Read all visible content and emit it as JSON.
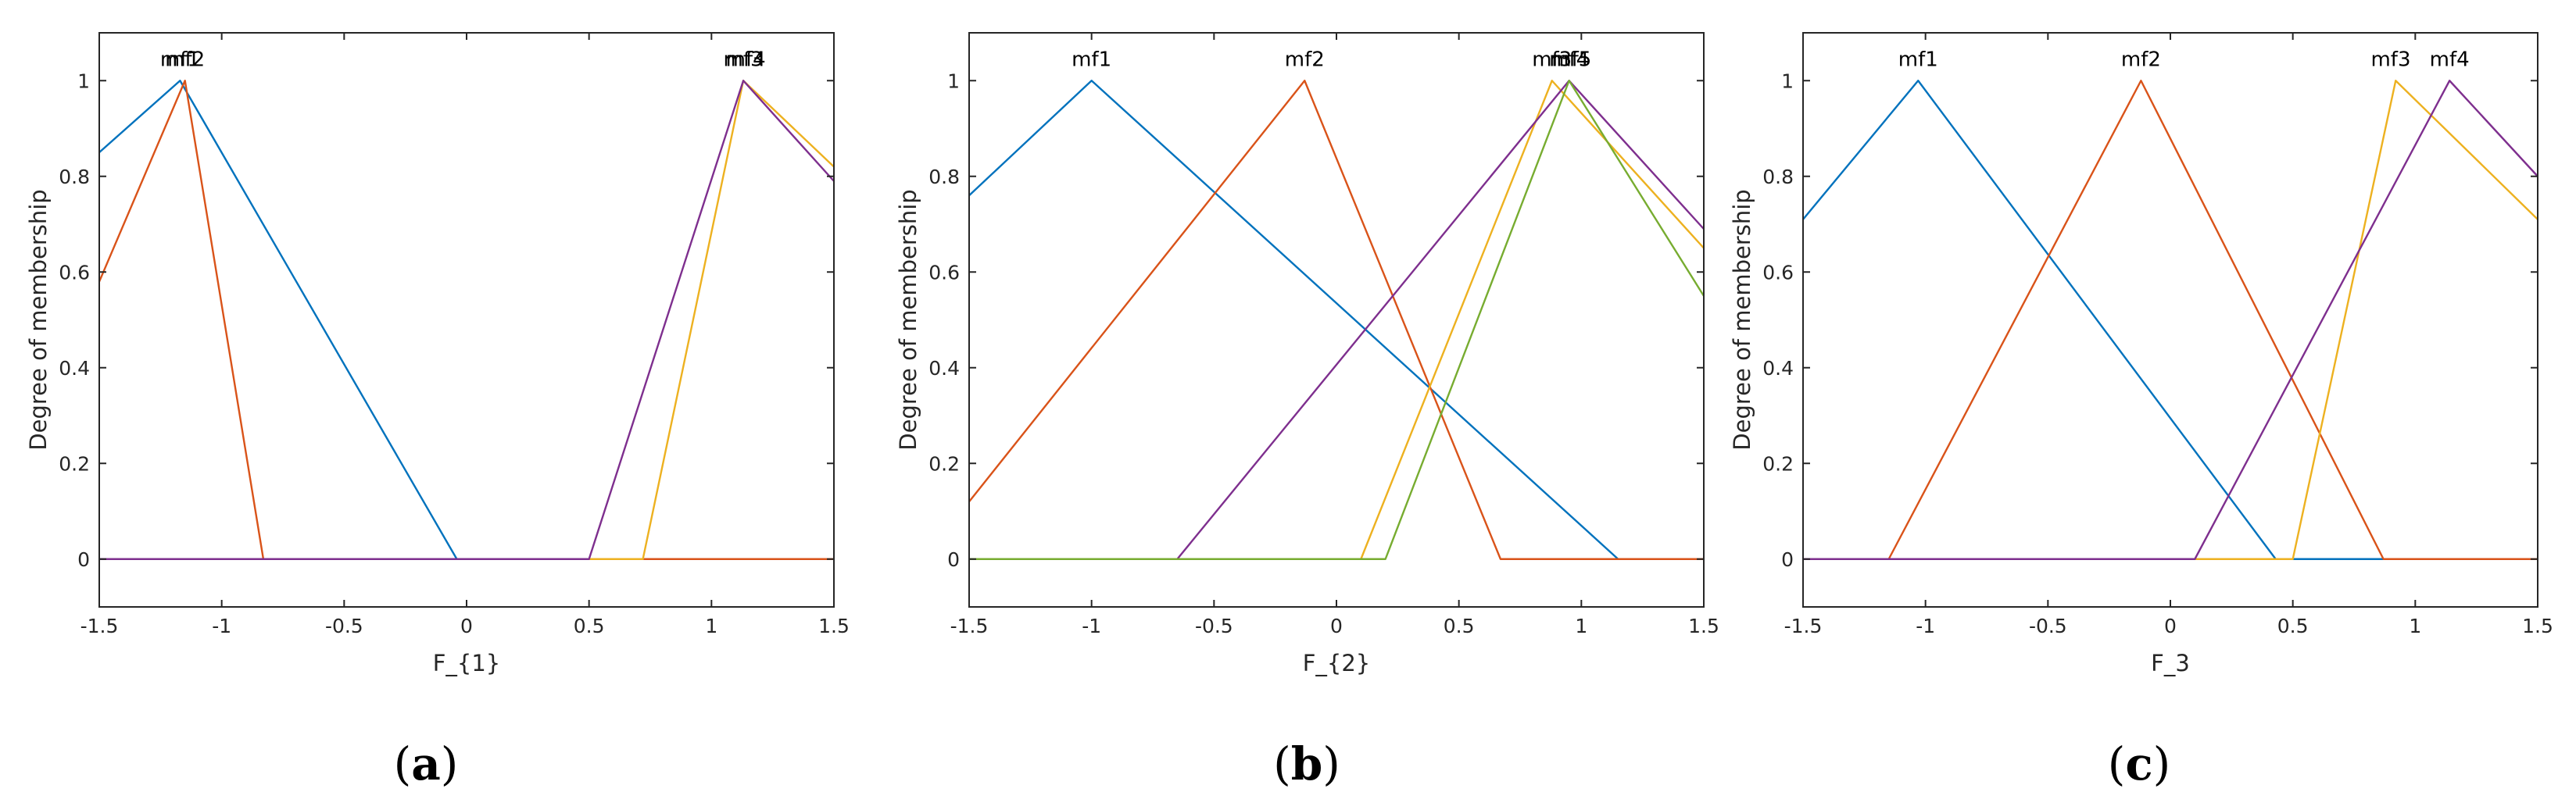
{
  "chart_data": [
    {
      "type": "line",
      "panel": "(a)",
      "panel_letter": "a",
      "xlabel": "F_{1}",
      "ylabel": "Degree of membership",
      "xlim": [
        -1.5,
        1.5
      ],
      "ylim": [
        -0.1,
        1.1
      ],
      "xticks": [
        -1.5,
        -1,
        -0.5,
        0,
        0.5,
        1,
        1.5
      ],
      "xtick_labels": [
        "-1.5",
        "-1",
        "-0.5",
        "0",
        "0.5",
        "1",
        "1.5"
      ],
      "yticks": [
        0,
        0.2,
        0.4,
        0.6,
        0.8,
        1
      ],
      "ytick_labels": [
        "0",
        "0.2",
        "0.4",
        "0.6",
        "0.8",
        "1"
      ],
      "grid": false,
      "series": [
        {
          "name": "mf1",
          "color": "#0072BD",
          "label_x": -1.17,
          "label": "mf1",
          "points": [
            [
              -1.5,
              0.85
            ],
            [
              -1.17,
              1
            ],
            [
              -0.04,
              0
            ],
            [
              1.5,
              0
            ]
          ]
        },
        {
          "name": "mf2",
          "color": "#D95319",
          "label_x": -1.15,
          "label": "mf2",
          "points": [
            [
              -1.5,
              0.58
            ],
            [
              -1.15,
              1
            ],
            [
              -0.83,
              0
            ],
            [
              1.5,
              0
            ]
          ]
        },
        {
          "name": "mf3",
          "color": "#EDB120",
          "label_x": 1.13,
          "label": "mf3",
          "points": [
            [
              -1.5,
              0
            ],
            [
              0.72,
              0
            ],
            [
              1.13,
              1
            ],
            [
              1.5,
              0.82
            ]
          ]
        },
        {
          "name": "mf4",
          "color": "#7E2F8E",
          "label_x": 1.14,
          "label": "mf4",
          "points": [
            [
              -1.5,
              0
            ],
            [
              0.5,
              0
            ],
            [
              1.13,
              1
            ],
            [
              1.5,
              0.79
            ]
          ]
        }
      ]
    },
    {
      "type": "line",
      "panel": "(b)",
      "panel_letter": "b",
      "xlabel": "F_{2}",
      "ylabel": "Degree of membership",
      "xlim": [
        -1.5,
        1.5
      ],
      "ylim": [
        -0.1,
        1.1
      ],
      "xticks": [
        -1.5,
        -1,
        -0.5,
        0,
        0.5,
        1,
        1.5
      ],
      "xtick_labels": [
        "-1.5",
        "-1",
        "-0.5",
        "0",
        "0.5",
        "1",
        "1.5"
      ],
      "yticks": [
        0,
        0.2,
        0.4,
        0.6,
        0.8,
        1
      ],
      "ytick_labels": [
        "0",
        "0.2",
        "0.4",
        "0.6",
        "0.8",
        "1"
      ],
      "grid": false,
      "series": [
        {
          "name": "mf1",
          "color": "#0072BD",
          "label_x": -1.0,
          "label": "mf1",
          "points": [
            [
              -1.5,
              0.76
            ],
            [
              -1.0,
              1
            ],
            [
              1.15,
              0
            ],
            [
              1.5,
              0
            ]
          ]
        },
        {
          "name": "mf2",
          "color": "#D95319",
          "label_x": -0.13,
          "label": "mf2",
          "points": [
            [
              -1.5,
              0.12
            ],
            [
              -0.13,
              1
            ],
            [
              0.67,
              0
            ],
            [
              1.5,
              0
            ]
          ]
        },
        {
          "name": "mf3",
          "color": "#EDB120",
          "label_x": 0.88,
          "label": "mf3",
          "points": [
            [
              -1.5,
              0
            ],
            [
              0.1,
              0
            ],
            [
              0.88,
              1
            ],
            [
              1.5,
              0.65
            ]
          ]
        },
        {
          "name": "mf4",
          "color": "#7E2F8E",
          "label_x": 0.95,
          "label": "mf4",
          "points": [
            [
              -1.5,
              0
            ],
            [
              -0.65,
              0
            ],
            [
              0.95,
              1
            ],
            [
              1.5,
              0.69
            ]
          ]
        },
        {
          "name": "mf5",
          "color": "#77AC30",
          "label_x": 0.96,
          "label": "mf5",
          "points": [
            [
              -1.5,
              0
            ],
            [
              0.2,
              0
            ],
            [
              0.95,
              1
            ],
            [
              1.5,
              0.55
            ]
          ]
        }
      ]
    },
    {
      "type": "line",
      "panel": "(c)",
      "panel_letter": "c",
      "xlabel": "F_3",
      "ylabel": "Degree of membership",
      "xlim": [
        -1.5,
        1.5
      ],
      "ylim": [
        -0.1,
        1.1
      ],
      "xticks": [
        -1.5,
        -1,
        -0.5,
        0,
        0.5,
        1,
        1.5
      ],
      "xtick_labels": [
        "-1.5",
        "-1",
        "-0.5",
        "0",
        "0.5",
        "1",
        "1.5"
      ],
      "yticks": [
        0,
        0.2,
        0.4,
        0.6,
        0.8,
        1
      ],
      "ytick_labels": [
        "0",
        "0.2",
        "0.4",
        "0.6",
        "0.8",
        "1"
      ],
      "grid": false,
      "series": [
        {
          "name": "mf1",
          "color": "#0072BD",
          "label_x": -1.03,
          "label": "mf1",
          "points": [
            [
              -1.5,
              0.71
            ],
            [
              -1.03,
              1
            ],
            [
              0.43,
              0
            ],
            [
              1.5,
              0
            ]
          ]
        },
        {
          "name": "mf2",
          "color": "#D95319",
          "label_x": -0.12,
          "label": "mf2",
          "points": [
            [
              -1.5,
              0
            ],
            [
              -1.15,
              0
            ],
            [
              -0.12,
              1
            ],
            [
              0.87,
              0
            ],
            [
              1.5,
              0
            ]
          ]
        },
        {
          "name": "mf3",
          "color": "#EDB120",
          "label_x": 0.9,
          "label": "mf3",
          "points": [
            [
              -1.5,
              0
            ],
            [
              0.5,
              0
            ],
            [
              0.92,
              1
            ],
            [
              1.5,
              0.71
            ]
          ]
        },
        {
          "name": "mf4",
          "color": "#7E2F8E",
          "label_x": 1.14,
          "label": "mf4",
          "points": [
            [
              -1.5,
              0
            ],
            [
              0.1,
              0
            ],
            [
              1.14,
              1
            ],
            [
              1.5,
              0.8
            ]
          ]
        }
      ]
    }
  ]
}
